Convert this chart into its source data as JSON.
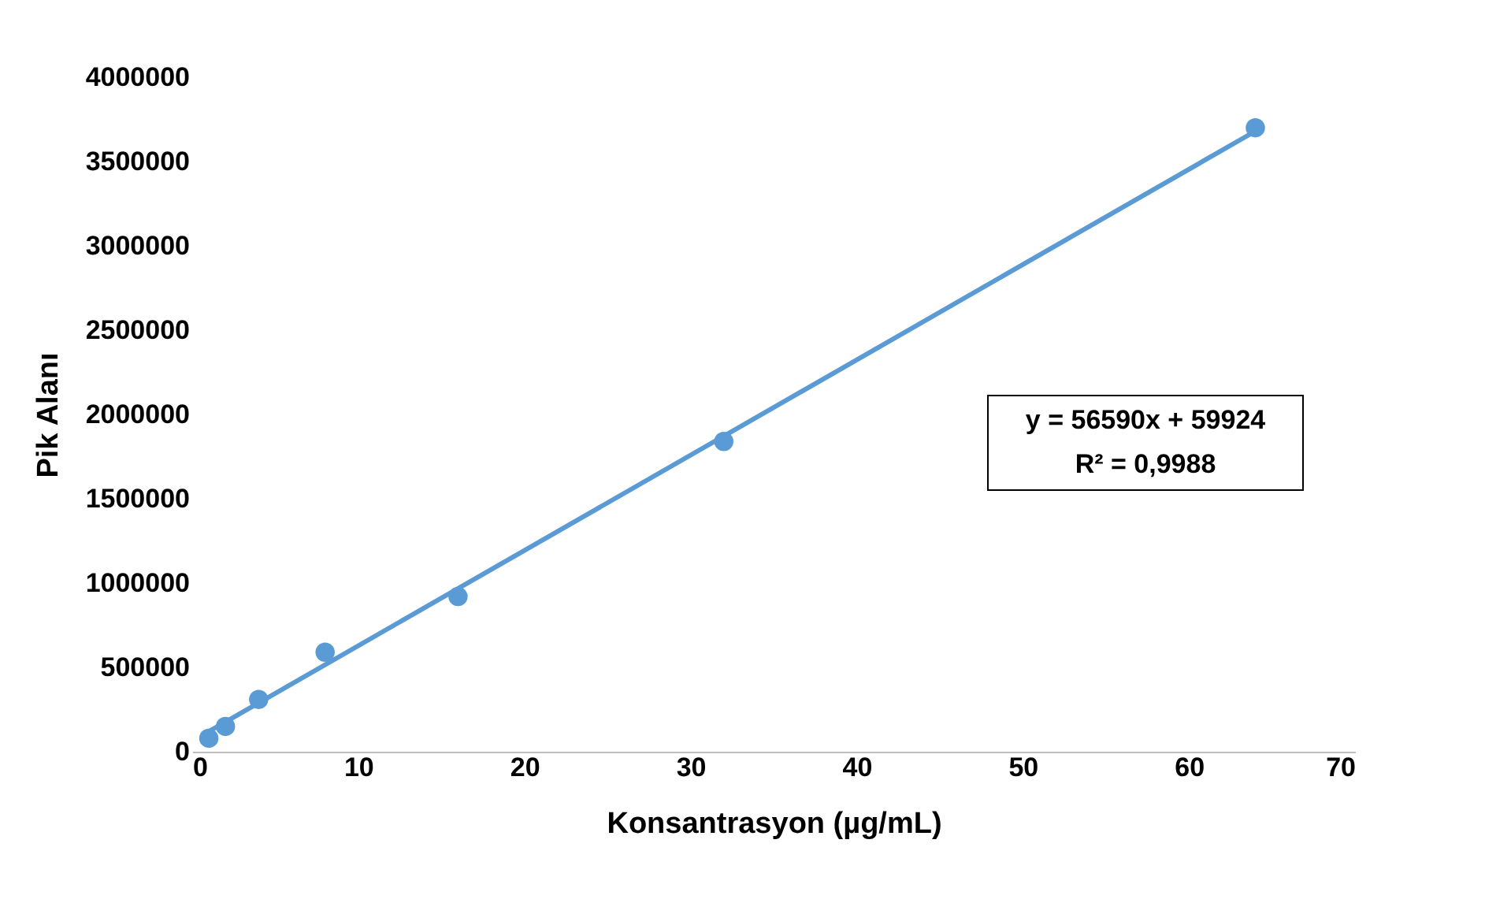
{
  "chart_data": {
    "type": "scatter",
    "xlabel": "Konsantrasyon (µg/mL)",
    "ylabel": "Pik Alanı",
    "x": [
      1,
      2,
      4,
      8,
      16,
      32,
      64
    ],
    "series": [
      {
        "color": "#5b9bd5",
        "values": [
          80000,
          150000,
          310000,
          590000,
          920000,
          1840000,
          3700000
        ]
      },
      {
        "type": "line",
        "color": "#5b9bd5",
        "marker": "none",
        "x": [
          1,
          64
        ],
        "values": [
          120000,
          3680000
        ]
      }
    ],
    "annotations": [
      "y = 56590x + 59924",
      "R² = 0,9988"
    ],
    "xlim": [
      0,
      70
    ],
    "xticks": [
      0,
      10,
      20,
      30,
      40,
      50,
      60,
      70
    ],
    "ylim": [
      0,
      4000000
    ],
    "yticks": [
      0,
      500000,
      1000000,
      1500000,
      2000000,
      2500000,
      3000000,
      3500000,
      4000000
    ],
    "grid": false,
    "marker": "circle"
  }
}
